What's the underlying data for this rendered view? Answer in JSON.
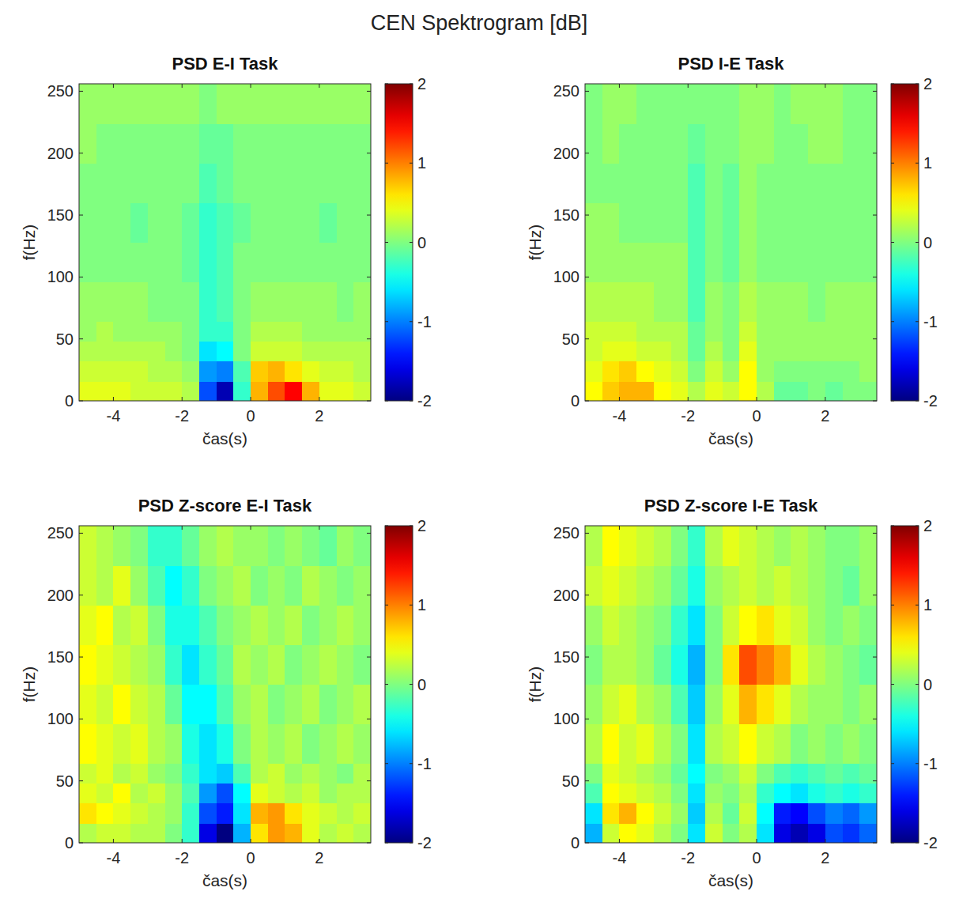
{
  "title": "CEN Spektrogram [dB]",
  "chart_data": [
    {
      "type": "heatmap",
      "title": "PSD E-I Task",
      "x_label": "čas(s)",
      "y_label": "f(Hz)",
      "xlim": [
        -5,
        3.5
      ],
      "ylim": [
        0,
        256
      ],
      "xticks": [
        -4,
        -2,
        0,
        2
      ],
      "yticks": [
        0,
        50,
        100,
        150,
        200,
        250
      ],
      "x_edges": [
        -5,
        -4.5,
        -4,
        -3.5,
        -3,
        -2.5,
        -2,
        -1.5,
        -1,
        -0.5,
        0,
        0.5,
        1,
        1.5,
        2,
        2.5,
        3,
        3.5
      ],
      "y_edges": [
        0,
        16,
        32,
        48,
        64,
        96,
        128,
        160,
        192,
        224,
        256
      ],
      "clim": [
        -2,
        2
      ],
      "cticks": [
        -2,
        -1,
        0,
        1,
        2
      ],
      "values": [
        [
          0.4,
          0.4,
          0.4,
          0.3,
          0.3,
          0.3,
          0.2,
          -1.2,
          -1.8,
          -0.3,
          0.8,
          1.2,
          1.5,
          0.8,
          0.4,
          0.4,
          0.3
        ],
        [
          0.3,
          0.3,
          0.3,
          0.3,
          0.2,
          0.2,
          0.1,
          -0.9,
          -1.0,
          -0.2,
          0.7,
          0.8,
          0.6,
          0.4,
          0.3,
          0.3,
          0.2
        ],
        [
          0.2,
          0.2,
          0.2,
          0.2,
          0.2,
          0.1,
          0.0,
          -0.6,
          -0.5,
          0.0,
          0.3,
          0.3,
          0.3,
          0.2,
          0.2,
          0.2,
          0.2
        ],
        [
          0.1,
          0.2,
          0.1,
          0.1,
          0.1,
          0.1,
          0.0,
          -0.3,
          -0.3,
          0.0,
          0.2,
          0.2,
          0.2,
          0.1,
          0.1,
          0.1,
          0.1
        ],
        [
          0.1,
          0.1,
          0.1,
          0.1,
          0.0,
          0.0,
          0.0,
          -0.3,
          -0.2,
          0.0,
          0.1,
          0.1,
          0.1,
          0.1,
          0.1,
          0.0,
          0.1
        ],
        [
          0.0,
          0.0,
          0.0,
          0.0,
          0.0,
          0.0,
          -0.1,
          -0.3,
          -0.2,
          0.0,
          0.0,
          0.0,
          0.0,
          0.0,
          0.0,
          0.0,
          0.0
        ],
        [
          0.0,
          0.0,
          0.0,
          -0.1,
          0.0,
          0.0,
          -0.1,
          -0.3,
          -0.2,
          -0.1,
          0.0,
          0.0,
          0.0,
          0.0,
          -0.1,
          0.0,
          0.0
        ],
        [
          0.0,
          0.0,
          0.0,
          0.0,
          0.0,
          0.0,
          0.0,
          -0.2,
          -0.1,
          0.0,
          0.0,
          0.0,
          0.0,
          0.0,
          0.0,
          0.0,
          0.0
        ],
        [
          0.1,
          0.0,
          0.0,
          0.0,
          0.0,
          0.0,
          0.0,
          -0.1,
          -0.1,
          0.0,
          0.0,
          0.0,
          0.0,
          0.0,
          0.0,
          0.0,
          0.0
        ],
        [
          0.1,
          0.1,
          0.1,
          0.1,
          0.1,
          0.1,
          0.1,
          0.0,
          0.1,
          0.1,
          0.1,
          0.1,
          0.1,
          0.1,
          0.1,
          0.1,
          0.1
        ]
      ]
    },
    {
      "type": "heatmap",
      "title": "PSD I-E Task",
      "x_label": "čas(s)",
      "y_label": "f(Hz)",
      "xlim": [
        -5,
        3.5
      ],
      "ylim": [
        0,
        256
      ],
      "xticks": [
        -4,
        -2,
        0,
        2
      ],
      "yticks": [
        0,
        50,
        100,
        150,
        200,
        250
      ],
      "x_edges": [
        -5,
        -4.5,
        -4,
        -3.5,
        -3,
        -2.5,
        -2,
        -1.5,
        -1,
        -0.5,
        0,
        0.5,
        1,
        1.5,
        2,
        2.5,
        3,
        3.5
      ],
      "y_edges": [
        0,
        16,
        32,
        48,
        64,
        96,
        128,
        160,
        192,
        224,
        256
      ],
      "clim": [
        -2,
        2
      ],
      "cticks": [
        -2,
        -1,
        0,
        1,
        2
      ],
      "values": [
        [
          0.5,
          0.7,
          0.8,
          0.8,
          0.5,
          0.4,
          0.2,
          0.4,
          0.3,
          0.5,
          0.2,
          -0.1,
          -0.1,
          0.0,
          -0.1,
          0.0,
          0.0
        ],
        [
          0.4,
          0.6,
          0.7,
          0.5,
          0.4,
          0.3,
          0.0,
          0.3,
          0.1,
          0.5,
          0.1,
          0.0,
          0.0,
          0.0,
          0.0,
          0.0,
          0.1
        ],
        [
          0.3,
          0.4,
          0.4,
          0.3,
          0.3,
          0.2,
          -0.1,
          0.2,
          0.0,
          0.4,
          0.1,
          0.1,
          0.1,
          0.1,
          0.1,
          0.1,
          0.1
        ],
        [
          0.3,
          0.3,
          0.3,
          0.2,
          0.2,
          0.2,
          -0.1,
          0.1,
          0.0,
          0.3,
          0.1,
          0.1,
          0.1,
          0.1,
          0.1,
          0.1,
          0.1
        ],
        [
          0.2,
          0.2,
          0.2,
          0.2,
          0.1,
          0.1,
          -0.2,
          0.1,
          0.0,
          0.2,
          0.1,
          0.1,
          0.1,
          0.0,
          0.1,
          0.1,
          0.1
        ],
        [
          0.1,
          0.1,
          0.1,
          0.1,
          0.1,
          0.1,
          -0.2,
          0.0,
          -0.1,
          0.1,
          0.0,
          0.0,
          0.0,
          0.0,
          0.0,
          0.0,
          0.0
        ],
        [
          0.1,
          0.1,
          0.0,
          0.0,
          0.0,
          0.0,
          -0.2,
          0.0,
          -0.1,
          0.1,
          0.0,
          0.0,
          0.0,
          0.0,
          0.0,
          0.0,
          0.0
        ],
        [
          0.0,
          0.0,
          0.0,
          0.0,
          0.0,
          0.0,
          -0.2,
          0.0,
          -0.1,
          0.1,
          0.0,
          0.0,
          0.0,
          0.0,
          0.0,
          0.0,
          0.0
        ],
        [
          0.0,
          0.1,
          0.0,
          0.0,
          0.0,
          0.0,
          -0.1,
          0.0,
          0.0,
          0.1,
          0.1,
          0.0,
          0.0,
          0.1,
          0.1,
          0.0,
          0.0
        ],
        [
          0.0,
          0.1,
          0.1,
          0.0,
          0.0,
          0.0,
          0.0,
          0.0,
          0.0,
          0.1,
          0.1,
          0.0,
          0.1,
          0.1,
          0.1,
          0.0,
          0.0
        ]
      ]
    },
    {
      "type": "heatmap",
      "title": "PSD Z-score E-I Task",
      "x_label": "čas(s)",
      "y_label": "f(Hz)",
      "xlim": [
        -5,
        3.5
      ],
      "ylim": [
        0,
        256
      ],
      "xticks": [
        -4,
        -2,
        0,
        2
      ],
      "yticks": [
        0,
        50,
        100,
        150,
        200,
        250
      ],
      "x_edges": [
        -5,
        -4.5,
        -4,
        -3.5,
        -3,
        -2.5,
        -2,
        -1.5,
        -1,
        -0.5,
        0,
        0.5,
        1,
        1.5,
        2,
        2.5,
        3,
        3.5
      ],
      "y_edges": [
        0,
        16,
        32,
        48,
        64,
        96,
        128,
        160,
        192,
        224,
        256
      ],
      "clim": [
        -2,
        2
      ],
      "cticks": [
        -2,
        -1,
        0,
        1,
        2
      ],
      "values": [
        [
          0.2,
          0.3,
          0.3,
          0.2,
          0.2,
          0.0,
          -0.3,
          -1.6,
          -2.0,
          -0.8,
          0.6,
          0.9,
          0.8,
          0.4,
          0.2,
          0.3,
          0.2
        ],
        [
          0.6,
          0.5,
          0.4,
          0.3,
          0.2,
          0.1,
          -0.3,
          -1.2,
          -1.4,
          -0.6,
          0.8,
          0.9,
          0.6,
          0.4,
          0.3,
          0.2,
          0.3
        ],
        [
          0.4,
          0.3,
          0.5,
          0.2,
          0.3,
          0.1,
          -0.2,
          -0.9,
          -1.2,
          -0.5,
          0.4,
          0.3,
          0.2,
          0.3,
          0.1,
          0.2,
          0.2
        ],
        [
          0.3,
          0.4,
          0.2,
          0.3,
          0.1,
          0.0,
          -0.3,
          -0.6,
          -0.7,
          -0.2,
          0.2,
          0.3,
          0.1,
          0.2,
          0.1,
          0.0,
          0.2
        ],
        [
          0.5,
          0.4,
          0.3,
          0.4,
          0.2,
          0.1,
          -0.4,
          -0.6,
          -0.4,
          0.0,
          0.2,
          0.1,
          0.2,
          0.0,
          0.1,
          0.2,
          0.1
        ],
        [
          0.4,
          0.3,
          0.5,
          0.3,
          0.2,
          -0.1,
          -0.5,
          -0.5,
          -0.2,
          0.1,
          0.2,
          0.0,
          0.1,
          0.2,
          0.0,
          0.1,
          0.2
        ],
        [
          0.5,
          0.4,
          0.3,
          0.2,
          0.1,
          -0.3,
          -0.6,
          -0.3,
          -0.1,
          0.2,
          0.1,
          0.2,
          0.0,
          0.1,
          0.2,
          0.1,
          0.0
        ],
        [
          0.4,
          0.5,
          0.2,
          0.3,
          0.0,
          -0.4,
          -0.4,
          -0.2,
          0.0,
          0.1,
          0.2,
          0.1,
          0.2,
          0.0,
          0.1,
          0.2,
          0.1
        ],
        [
          0.3,
          0.2,
          0.4,
          0.1,
          -0.2,
          -0.5,
          -0.3,
          0.0,
          0.1,
          0.2,
          0.0,
          0.1,
          0.0,
          0.2,
          0.1,
          0.0,
          0.1
        ],
        [
          0.3,
          0.2,
          0.1,
          0.0,
          -0.3,
          -0.3,
          -0.1,
          0.1,
          0.2,
          0.1,
          0.1,
          0.0,
          0.1,
          0.0,
          -0.1,
          0.1,
          0.0
        ]
      ]
    },
    {
      "type": "heatmap",
      "title": "PSD Z-score I-E Task",
      "x_label": "čas(s)",
      "y_label": "f(Hz)",
      "xlim": [
        -5,
        3.5
      ],
      "ylim": [
        0,
        256
      ],
      "xticks": [
        -4,
        -2,
        0,
        2
      ],
      "yticks": [
        0,
        50,
        100,
        150,
        200,
        250
      ],
      "x_edges": [
        -5,
        -4.5,
        -4,
        -3.5,
        -3,
        -2.5,
        -2,
        -1.5,
        -1,
        -0.5,
        0,
        0.5,
        1,
        1.5,
        2,
        2.5,
        3,
        3.5
      ],
      "y_edges": [
        0,
        16,
        32,
        48,
        64,
        96,
        128,
        160,
        192,
        224,
        256
      ],
      "clim": [
        -2,
        2
      ],
      "cticks": [
        -2,
        -1,
        0,
        1,
        2
      ],
      "values": [
        [
          -0.8,
          0.3,
          0.5,
          0.4,
          0.2,
          0.0,
          -0.6,
          0.3,
          0.0,
          0.2,
          -0.6,
          -1.6,
          -1.8,
          -1.6,
          -1.2,
          -1.3,
          -1.1
        ],
        [
          -0.6,
          0.6,
          0.8,
          0.5,
          0.3,
          0.1,
          -0.7,
          0.2,
          -0.1,
          0.3,
          -0.5,
          -1.4,
          -1.5,
          -1.2,
          -1.0,
          -1.1,
          -0.9
        ],
        [
          -0.2,
          0.5,
          0.4,
          0.3,
          0.2,
          0.0,
          -0.6,
          0.1,
          0.0,
          0.2,
          -0.3,
          -0.5,
          -0.6,
          -0.4,
          -0.3,
          -0.4,
          -0.3
        ],
        [
          0.0,
          0.4,
          0.3,
          0.2,
          0.1,
          -0.1,
          -0.5,
          0.0,
          0.1,
          0.3,
          0.0,
          -0.2,
          -0.3,
          -0.2,
          -0.1,
          -0.2,
          -0.1
        ],
        [
          0.2,
          0.5,
          0.3,
          0.4,
          0.2,
          0.0,
          -0.6,
          0.2,
          0.3,
          0.5,
          0.3,
          0.2,
          0.0,
          0.1,
          0.0,
          0.1,
          0.0
        ],
        [
          0.1,
          0.3,
          0.4,
          0.2,
          0.1,
          -0.2,
          -0.7,
          0.1,
          0.4,
          0.8,
          0.6,
          0.4,
          0.2,
          0.1,
          0.1,
          0.0,
          0.1
        ],
        [
          0.0,
          0.2,
          0.2,
          0.1,
          -0.1,
          -0.4,
          -0.8,
          0.0,
          0.6,
          1.2,
          1.0,
          0.8,
          0.4,
          0.2,
          0.1,
          0.0,
          -0.1
        ],
        [
          0.1,
          0.3,
          0.2,
          0.1,
          0.0,
          -0.3,
          -0.6,
          0.0,
          0.3,
          0.5,
          0.6,
          0.4,
          0.3,
          0.1,
          0.0,
          0.1,
          0.0
        ],
        [
          0.3,
          0.4,
          0.3,
          0.2,
          0.1,
          -0.1,
          -0.4,
          0.1,
          0.2,
          0.3,
          0.2,
          0.3,
          0.2,
          0.1,
          0.0,
          -0.1,
          0.1
        ],
        [
          0.2,
          0.5,
          0.4,
          0.3,
          0.2,
          0.0,
          -0.3,
          0.2,
          0.4,
          0.3,
          0.2,
          0.1,
          0.2,
          0.1,
          0.0,
          0.0,
          0.1
        ]
      ]
    }
  ]
}
